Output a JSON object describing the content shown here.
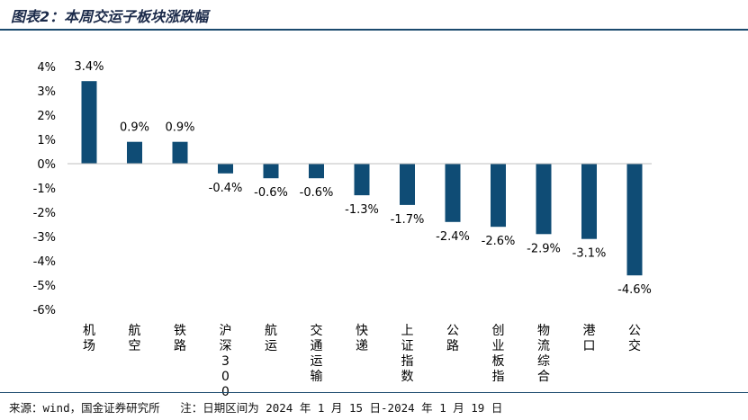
{
  "figure": {
    "title": "图表2：本周交运子板块涨跌幅",
    "source": "来源：wind，国金证券研究所",
    "note": "注：日期区间为 2024 年 1 月 15 日-2024 年 1 月 19 日"
  },
  "colors": {
    "bar": "#0f4c75",
    "axis": "#bfbfbf",
    "rule": "#1b4a6e"
  },
  "chart_data": {
    "type": "bar",
    "title": "本周交运子板块涨跌幅",
    "xlabel": "",
    "ylabel": "",
    "ylim": [
      -6,
      4
    ],
    "y_ticks": [
      "4%",
      "3%",
      "2%",
      "1%",
      "0%",
      "-1%",
      "-2%",
      "-3%",
      "-4%",
      "-5%",
      "-6%"
    ],
    "categories": [
      "机场",
      "航空",
      "铁路",
      "沪深300",
      "航运",
      "交通运输",
      "快递",
      "上证指数",
      "公路",
      "创业板指",
      "物流综合",
      "港口",
      "公交"
    ],
    "values": [
      3.4,
      0.9,
      0.9,
      -0.4,
      -0.6,
      -0.6,
      -1.3,
      -1.7,
      -2.4,
      -2.6,
      -2.9,
      -3.1,
      -4.6
    ],
    "data_labels": [
      "3.4%",
      "0.9%",
      "0.9%",
      "-0.4%",
      "-0.6%",
      "-0.6%",
      "-1.3%",
      "-1.7%",
      "-2.4%",
      "-2.6%",
      "-2.9%",
      "-3.1%",
      "-4.6%"
    ]
  }
}
